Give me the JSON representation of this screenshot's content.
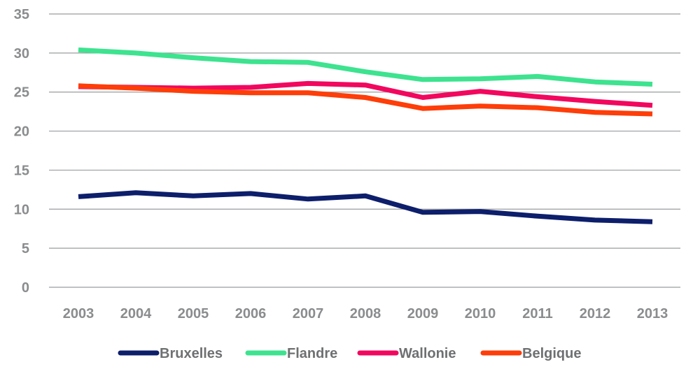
{
  "chart_data": {
    "type": "line",
    "title": "",
    "xlabel": "",
    "ylabel": "",
    "ylim": [
      0,
      35
    ],
    "yticks": [
      0,
      5,
      10,
      15,
      20,
      25,
      30,
      35
    ],
    "grid": true,
    "legend_position": "bottom",
    "categories": [
      "2003",
      "2004",
      "2005",
      "2006",
      "2007",
      "2008",
      "2009",
      "2010",
      "2011",
      "2012",
      "2013"
    ],
    "series": [
      {
        "name": "Bruxelles",
        "color": "#0d1e6b",
        "values": [
          11.6,
          12.1,
          11.7,
          12.0,
          11.3,
          11.7,
          9.6,
          9.7,
          9.1,
          8.6,
          8.4
        ]
      },
      {
        "name": "Flandre",
        "color": "#3de38f",
        "values": [
          30.4,
          30.0,
          29.4,
          28.9,
          28.8,
          27.6,
          26.6,
          26.7,
          27.0,
          26.3,
          26.0
        ]
      },
      {
        "name": "Wallonie",
        "color": "#f2075e",
        "values": [
          25.7,
          25.6,
          25.5,
          25.6,
          26.1,
          25.9,
          24.3,
          25.1,
          24.4,
          23.8,
          23.3
        ]
      },
      {
        "name": "Belgique",
        "color": "#fe3d09",
        "values": [
          25.8,
          25.5,
          25.1,
          24.9,
          24.9,
          24.3,
          22.9,
          23.2,
          23.0,
          22.4,
          22.2
        ]
      }
    ]
  }
}
